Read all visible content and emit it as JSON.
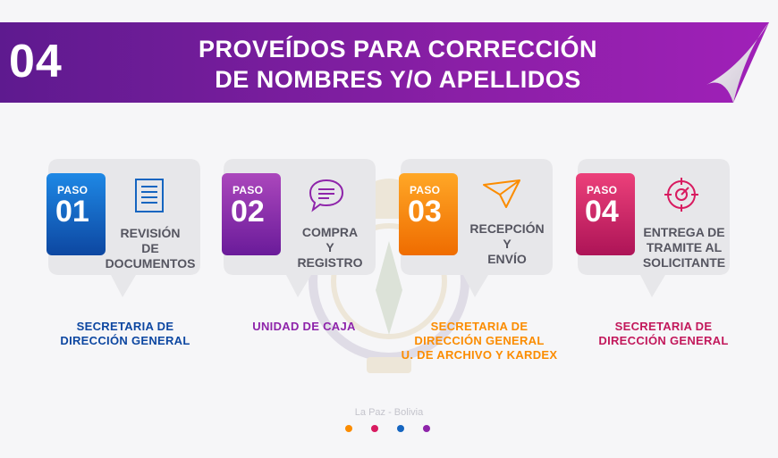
{
  "header": {
    "number": "04",
    "title_line1": "PROVEÍDOS PARA CORRECCIÓN",
    "title_line2": "DE NOMBRES Y/O APELLIDOS"
  },
  "watermark": {
    "location": "La Paz - Bolivia"
  },
  "colors": {
    "banner_start": "#6a1b9a",
    "banner_end": "#9c27b0",
    "step1": "#1565c0",
    "step2": "#8e24aa",
    "step3": "#fb8c00",
    "step4": "#d81b60",
    "office1": "#0d47a1",
    "office2": "#8e24aa",
    "office3": "#fb8c00",
    "office4": "#c2185b"
  },
  "steps": [
    {
      "paso": "PASO",
      "num": "01",
      "icon": "document-icon",
      "label": [
        "REVISIÓN",
        "DE",
        "DOCUMENTOS"
      ],
      "office": [
        "SECRETARIA DE",
        "DIRECCIÓN GENERAL"
      ]
    },
    {
      "paso": "PASO",
      "num": "02",
      "icon": "chat-bubble-icon",
      "label": [
        "COMPRA",
        "Y",
        "REGISTRO"
      ],
      "office": [
        "UNIDAD DE CAJA"
      ]
    },
    {
      "paso": "PASO",
      "num": "03",
      "icon": "paper-plane-icon",
      "label": [
        "RECEPCIÓN",
        "Y",
        "ENVÍO"
      ],
      "office": [
        "SECRETARIA DE",
        "DIRECCIÓN GENERAL",
        "U. DE ARCHIVO Y KARDEX"
      ]
    },
    {
      "paso": "PASO",
      "num": "04",
      "icon": "target-icon",
      "label": [
        "ENTREGA DE",
        "TRAMITE AL",
        "SOLICITANTE"
      ],
      "office": [
        "SECRETARIA DE",
        "DIRECCIÓN GENERAL"
      ]
    }
  ],
  "pagination": {
    "dot_colors": [
      "#fb8c00",
      "#d81b60",
      "#1565c0",
      "#8e24aa"
    ]
  }
}
